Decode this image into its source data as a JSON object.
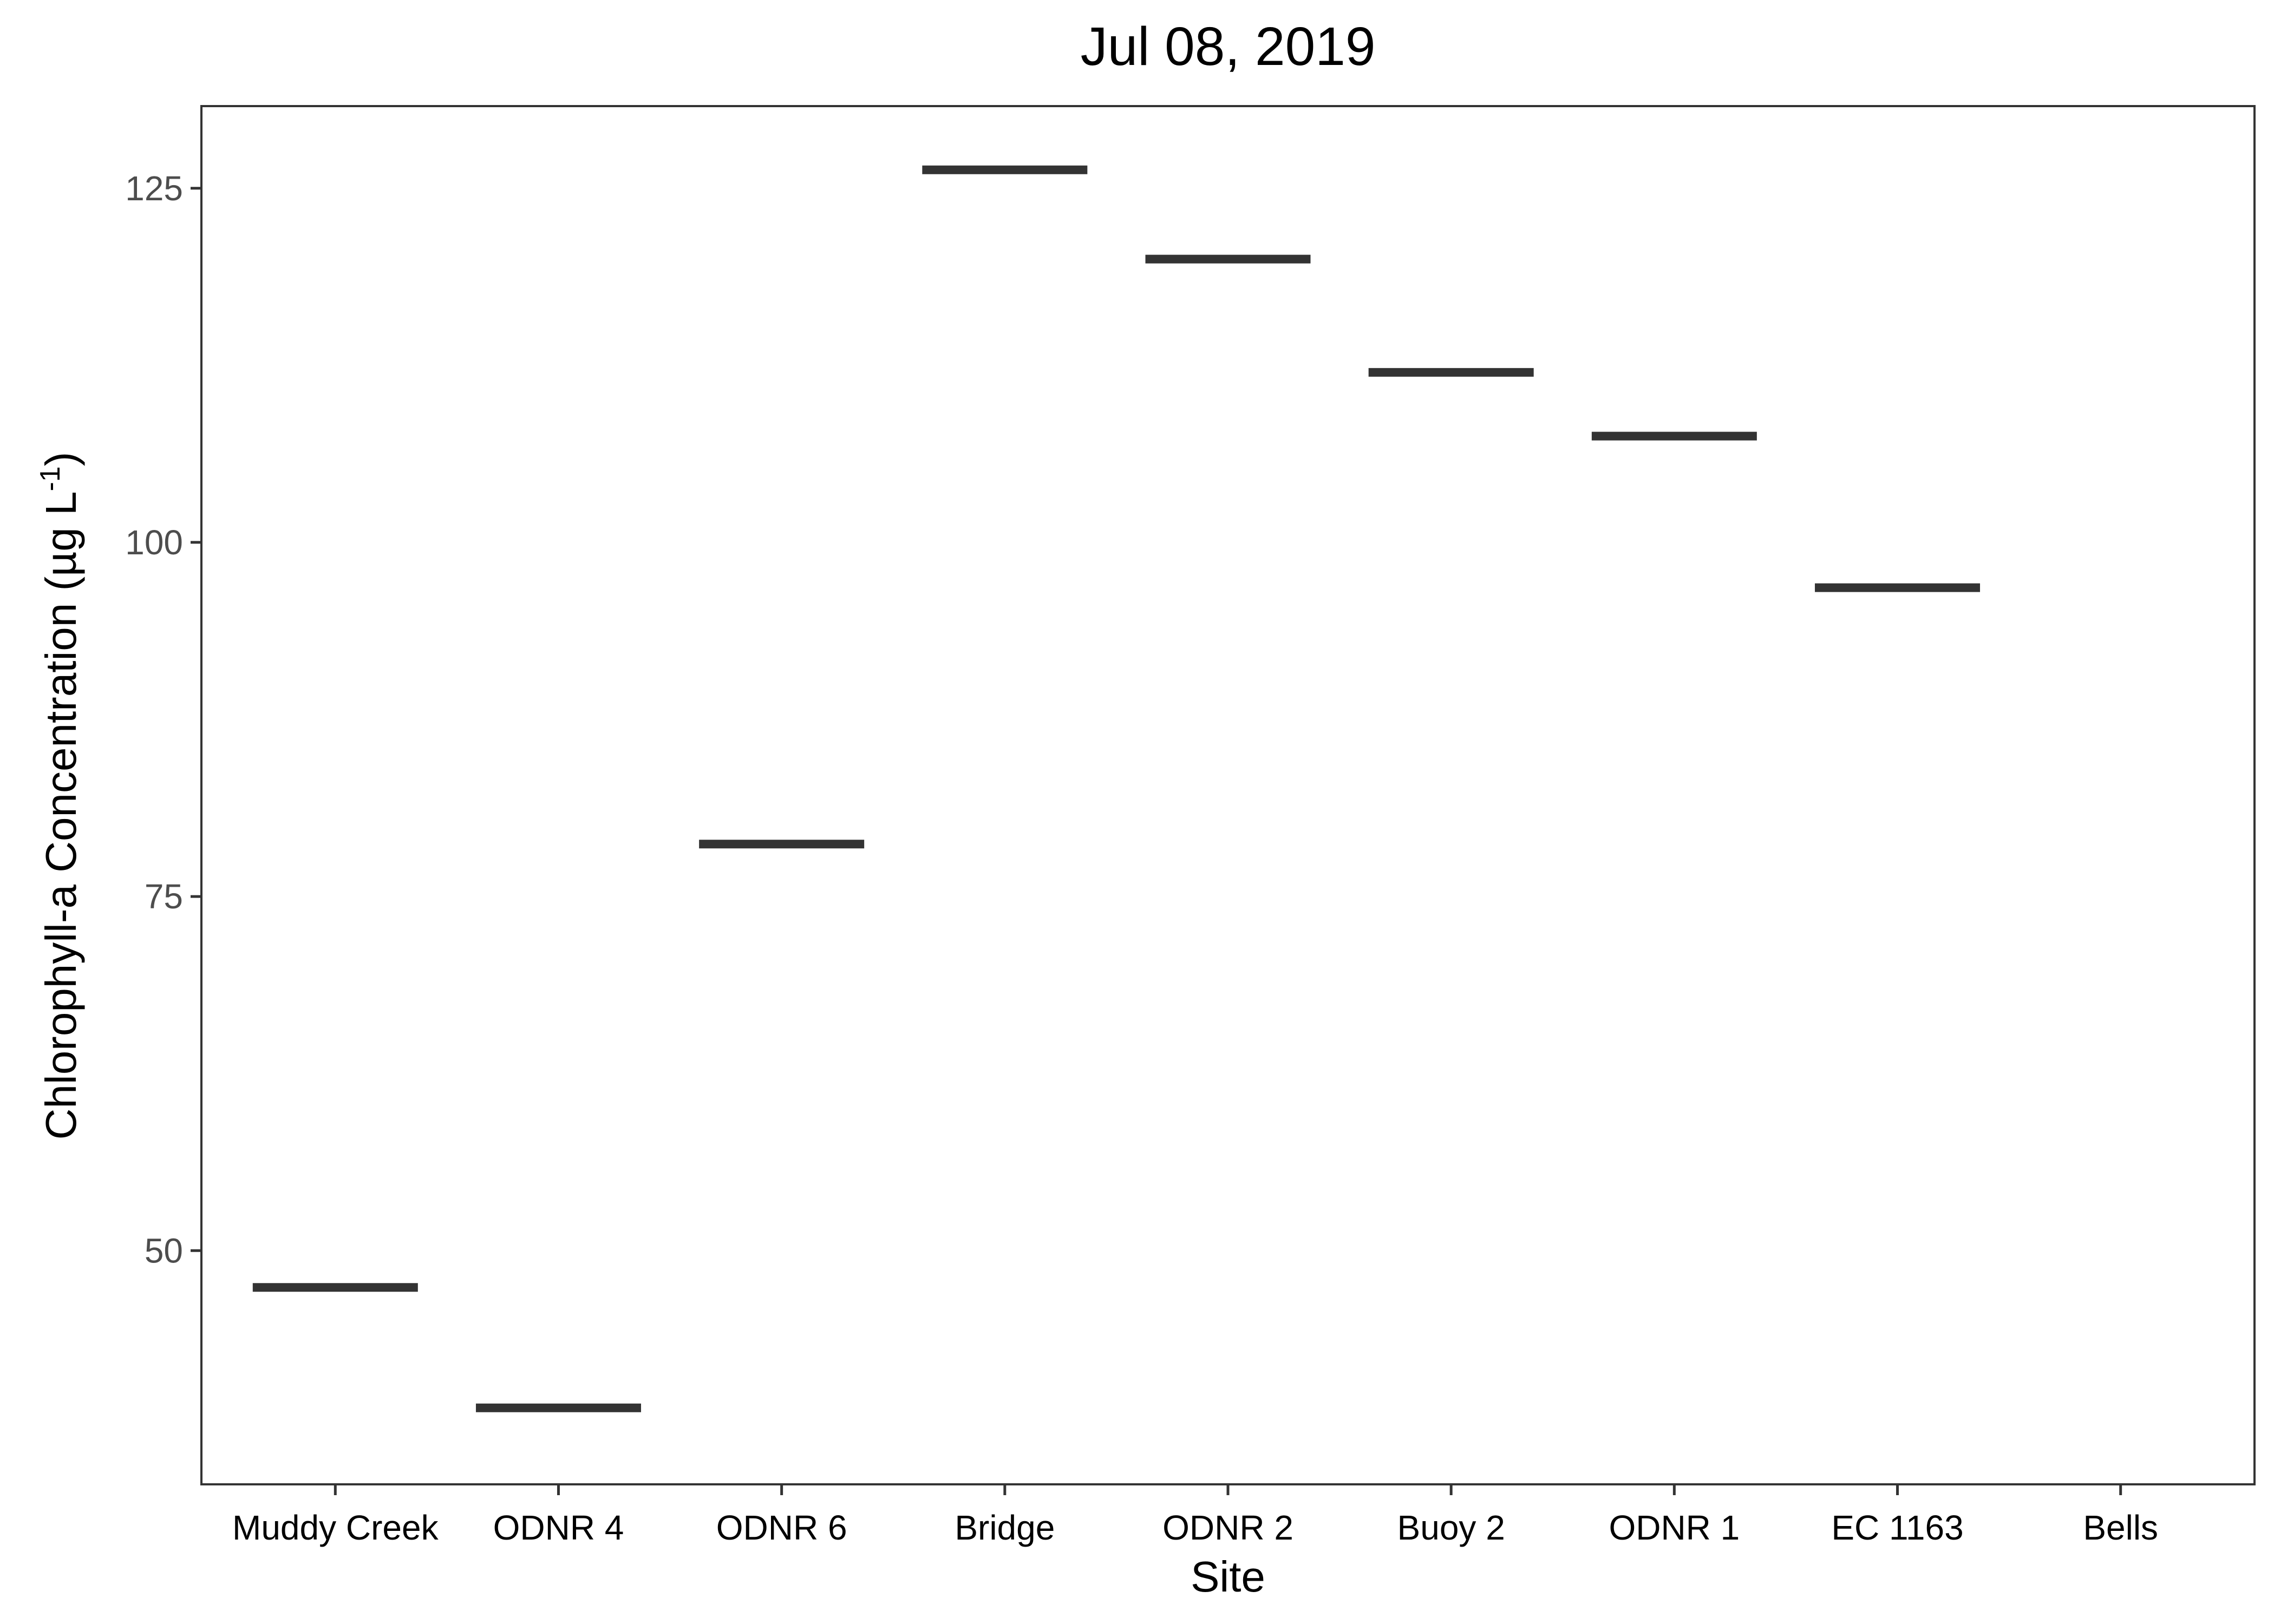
{
  "chart_data": {
    "type": "crossbar",
    "title": "Jul 08, 2019",
    "xlabel": "Site",
    "ylabel": "Chlorophyll-a Concentration (µg L⁻¹)",
    "ylabel_parts": {
      "main": "Chlorophyll-a Concentration (µg L",
      "sup": "-1",
      "close": ")"
    },
    "categories": [
      "Muddy Creek",
      "ODNR 4",
      "ODNR 6",
      "Bridge",
      "ODNR 2",
      "Buoy 2",
      "ODNR 1",
      "EC 1163",
      "Bells"
    ],
    "values": [
      47.4,
      38.9,
      78.7,
      126.3,
      120.0,
      112.0,
      107.5,
      96.8,
      null
    ],
    "ylim": [
      33.5,
      130.8
    ],
    "yticks": [
      50,
      75,
      100,
      125
    ],
    "grid": false,
    "legend": "none",
    "colors": {
      "mark": "#333333",
      "border": "#333333",
      "tick_label": "#4d4d4d"
    }
  }
}
